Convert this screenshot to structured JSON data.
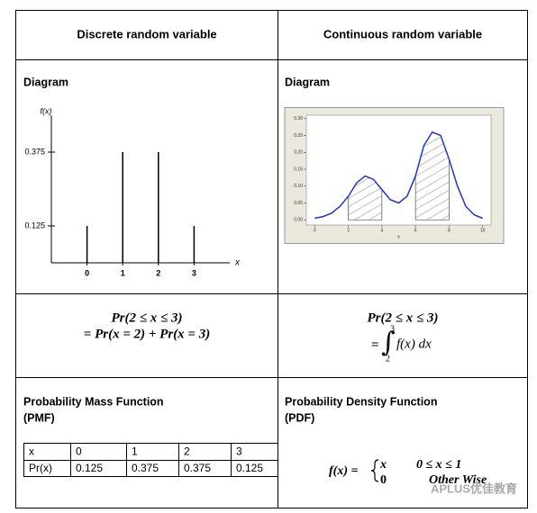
{
  "table": {
    "headers": [
      "Discrete random variable",
      "Continuous random variable"
    ],
    "diagram_labels": [
      "Diagram",
      "Diagram"
    ],
    "formulas": {
      "discrete": [
        "Pr(2 ≤ x ≤ 3)",
        "= Pr(x = 2) + Pr(x = 3)"
      ],
      "continuous": {
        "lhs": "Pr(2 ≤ x ≤ 3)",
        "eq": "=",
        "integral": "∫",
        "lower": "2",
        "upper": "3",
        "integrand": "f(x) dx"
      }
    },
    "functions": {
      "discrete": {
        "title": "Probability Mass Function",
        "abbr": "(PMF)",
        "rows": [
          [
            "x",
            "0",
            "1",
            "2",
            "3"
          ],
          [
            "Pr(x)",
            "0.125",
            "0.375",
            "0.375",
            "0.125"
          ]
        ]
      },
      "continuous": {
        "title": "Probability Density Function",
        "abbr": "(PDF)",
        "lhs": "f(x) =",
        "cases": [
          [
            "x",
            "0 ≤ x ≤ 1"
          ],
          [
            "0",
            "Other Wise"
          ]
        ]
      }
    },
    "watermark": "APLUS优佳教育"
  },
  "chart_data": [
    {
      "type": "stem",
      "y_label": "f(x)",
      "x_label": "x",
      "x": [
        0,
        1,
        2,
        3
      ],
      "values": [
        0.125,
        0.375,
        0.375,
        0.125
      ],
      "color": "#000000",
      "xlim": [
        -1,
        4
      ],
      "ylim": [
        0,
        0.5
      ],
      "xticks": [
        0,
        1,
        2,
        3
      ],
      "yticks": [
        0.125,
        0.375
      ]
    },
    {
      "type": "line",
      "x_label": "x",
      "x": [
        0,
        0.5,
        1,
        1.5,
        2,
        2.5,
        3,
        3.5,
        4,
        4.5,
        5,
        5.5,
        6,
        6.5,
        7,
        7.5,
        8,
        8.5,
        9,
        9.5,
        10
      ],
      "values": [
        0.005,
        0.01,
        0.02,
        0.04,
        0.07,
        0.11,
        0.13,
        0.12,
        0.09,
        0.06,
        0.05,
        0.07,
        0.13,
        0.22,
        0.26,
        0.25,
        0.18,
        0.1,
        0.04,
        0.015,
        0.005
      ],
      "color": "#2233cc",
      "shade": [
        [
          2,
          4
        ],
        [
          6,
          8
        ]
      ],
      "xlim": [
        -0.5,
        10.5
      ],
      "ylim": [
        -0.015,
        0.31
      ],
      "xticks": [
        0,
        2,
        4,
        6,
        8,
        10
      ],
      "yticks": [
        {
          "value": 0,
          "label": "0.00"
        },
        {
          "value": 0.05,
          "label": "0.05"
        },
        {
          "value": 0.1,
          "label": "0.10"
        },
        {
          "value": 0.15,
          "label": "0.15"
        },
        {
          "value": 0.2,
          "label": "0.20"
        },
        {
          "value": 0.25,
          "label": "0.25"
        },
        {
          "value": 0.3,
          "label": "0.30"
        }
      ]
    }
  ]
}
